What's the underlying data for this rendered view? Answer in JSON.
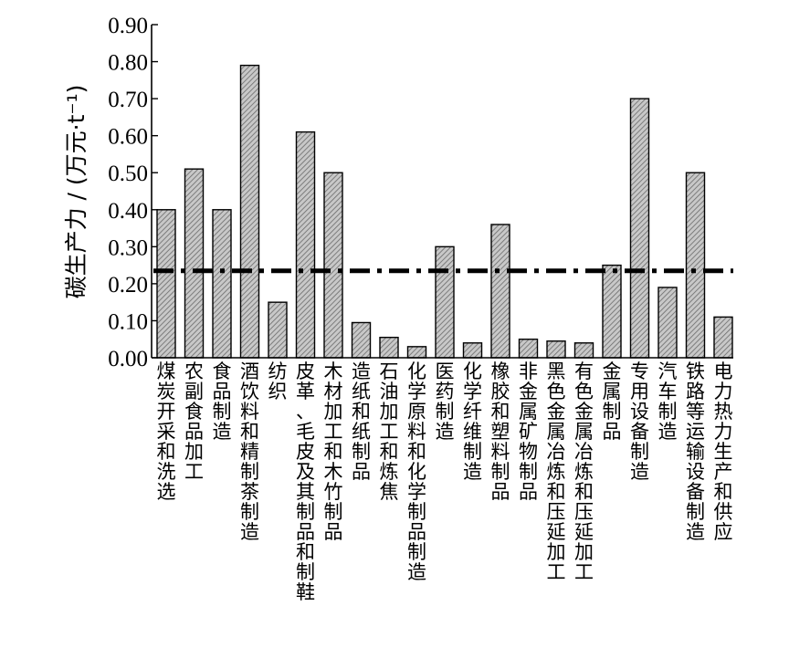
{
  "chart_data": {
    "type": "bar",
    "title": "",
    "xlabel": "",
    "ylabel": "碳生产力 / (万元·t⁻¹)",
    "ylim": [
      0,
      0.9
    ],
    "yticks": [
      "0.00",
      "0.10",
      "0.20",
      "0.30",
      "0.40",
      "0.50",
      "0.60",
      "0.70",
      "0.80",
      "0.90"
    ],
    "grid": false,
    "bar_fill": "hatched-gray",
    "reference_line": {
      "value": 0.235,
      "style": "dash-dot",
      "color": "#000000"
    },
    "categories": [
      "煤炭开采和洗选",
      "农副食品加工",
      "食品制造",
      "酒饮料和精制茶制造",
      "纺织",
      "皮革、毛皮及其制品和制鞋",
      "木材加工和木竹制品",
      "造纸和纸制品",
      "石油加工和炼焦",
      "化学原料和化学制品制造",
      "医药制造",
      "化学纤维制造",
      "橡胶和塑料制品",
      "非金属矿物制品",
      "黑色金属冶炼和压延加工",
      "有色金属冶炼和压延加工",
      "金属制品",
      "专用设备制造",
      "汽车制造",
      "铁路等运输设备制造",
      "电力热力生产和供应"
    ],
    "values": [
      0.4,
      0.51,
      0.4,
      0.79,
      0.15,
      0.61,
      0.5,
      0.095,
      0.055,
      0.03,
      0.3,
      0.04,
      0.36,
      0.05,
      0.045,
      0.04,
      0.25,
      0.7,
      0.19,
      0.5,
      0.11
    ]
  }
}
